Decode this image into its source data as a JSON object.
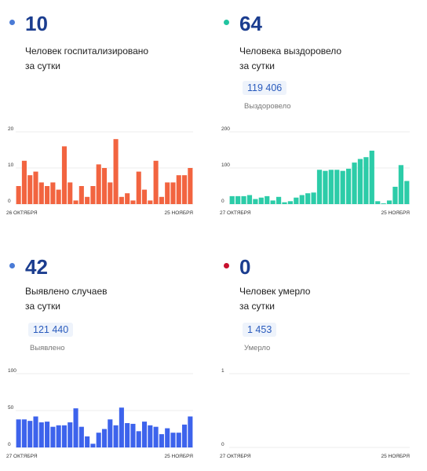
{
  "panels": [
    {
      "key": "hosp",
      "number": "10",
      "dot_color": "#4a7bd6",
      "description": "Человек госпитализировано\nза сутки",
      "total": "",
      "total_label": "",
      "bar_color": "#f26440"
    },
    {
      "key": "recov",
      "number": "64",
      "dot_color": "#22c4a0",
      "description": "Человека выздоровело\nза сутки",
      "total": "119 406",
      "total_label": "Выздоровело",
      "bar_color": "#2ccca8"
    },
    {
      "key": "cases",
      "number": "42",
      "dot_color": "#4a7bd6",
      "description": "Выявлено случаев\nза сутки",
      "total": "121 440",
      "total_label": "Выявлено",
      "bar_color": "#3d63ec"
    },
    {
      "key": "deaths",
      "number": "0",
      "dot_color": "#c8102e",
      "description": "Человек умерло\nза сутки",
      "total": "1 453",
      "total_label": "Умерло",
      "bar_color": "#e04444"
    }
  ],
  "chart_data": [
    {
      "type": "bar",
      "title": "",
      "x_start_label": "26 ОКТЯБРЯ",
      "x_end_label": "25 НОЯБРЯ",
      "yticks": [
        "0",
        "10",
        "20"
      ],
      "ylim": [
        0,
        20
      ],
      "values": [
        5,
        12,
        8,
        9,
        6,
        5,
        6,
        4,
        16,
        6,
        1,
        5,
        2,
        5,
        11,
        10,
        6,
        18,
        2,
        3,
        1,
        9,
        4,
        1,
        12,
        2,
        6,
        6,
        8,
        8,
        10
      ]
    },
    {
      "type": "bar",
      "title": "",
      "x_start_label": "27 ОКТЯБРЯ",
      "x_end_label": "25 НОЯБРЯ",
      "yticks": [
        "0",
        "100",
        "200"
      ],
      "ylim": [
        0,
        200
      ],
      "values": [
        22,
        22,
        22,
        25,
        14,
        18,
        22,
        10,
        20,
        5,
        8,
        18,
        25,
        30,
        32,
        95,
        92,
        95,
        95,
        92,
        98,
        115,
        125,
        130,
        148,
        8,
        2,
        10,
        48,
        108,
        64
      ]
    },
    {
      "type": "bar",
      "title": "",
      "x_start_label": "27 ОКТЯБРЯ",
      "x_end_label": "25 НОЯБРЯ",
      "yticks": [
        "0",
        "50",
        "100"
      ],
      "ylim": [
        0,
        100
      ],
      "values": [
        38,
        38,
        36,
        42,
        34,
        35,
        28,
        30,
        30,
        34,
        53,
        28,
        15,
        5,
        20,
        25,
        38,
        30,
        54,
        33,
        32,
        22,
        35,
        30,
        28,
        18,
        26,
        20,
        20,
        31,
        42
      ]
    },
    {
      "type": "bar",
      "title": "",
      "x_start_label": "27 ОКТЯБРЯ",
      "x_end_label": "25 НОЯБРЯ",
      "yticks": [
        "0",
        "1"
      ],
      "ylim": [
        0,
        1
      ],
      "values": []
    }
  ]
}
